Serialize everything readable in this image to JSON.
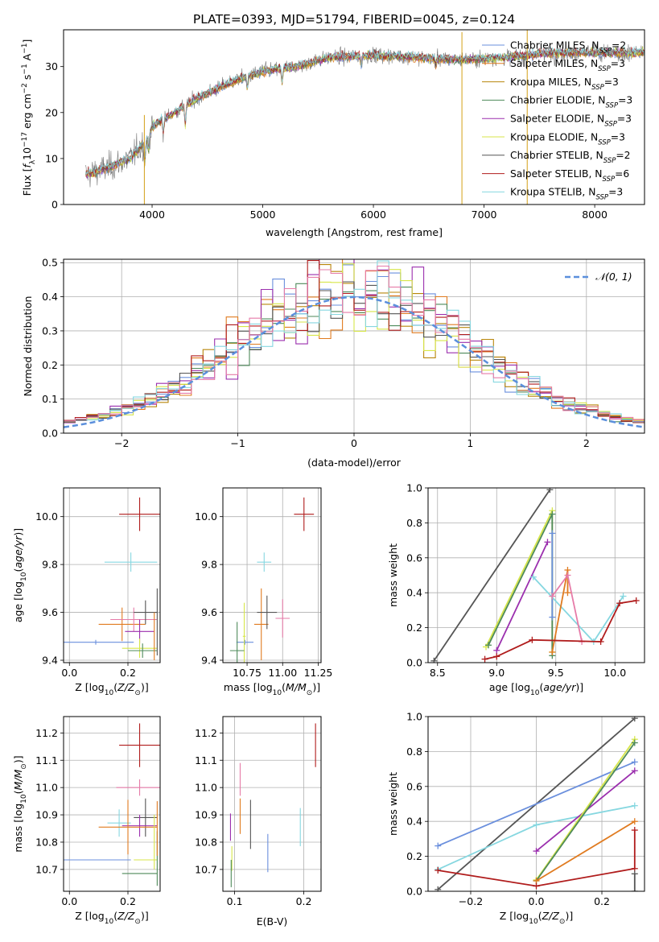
{
  "figure": {
    "title": "PLATE=0393, MJD=51794, FIBERID=0045, z=0.124"
  },
  "colors": {
    "Chabrier MILES": "#6a8fdd",
    "Salpeter MILES": "#e07b20",
    "Kroupa MILES": "#b8860b",
    "Chabrier ELODIE": "#4e8a5a",
    "Salpeter ELODIE": "#9b2fae",
    "Kroupa ELODIE": "#d7e64a",
    "Chabrier STELIB": "#555555",
    "Salpeter STELIB": "#b01c1c",
    "Kroupa STELIB": "#86d7e0",
    "pink": "#e67ba8"
  },
  "chart_data": [
    {
      "id": "spectrum",
      "type": "line",
      "xlabel": "wavelength [Angstrom, rest frame]",
      "ylabel": "Flux [f",
      "xlim": [
        3200,
        8450
      ],
      "ylim": [
        0,
        38
      ],
      "xticks": [
        4000,
        5000,
        6000,
        7000,
        8000
      ],
      "yticks": [
        0,
        10,
        20,
        30
      ],
      "legend_position": "top-right",
      "legend": [
        {
          "model": "Chabrier MILES",
          "nssp": "2"
        },
        {
          "model": "Salpeter MILES",
          "nssp": "3"
        },
        {
          "model": "Kroupa MILES",
          "nssp": "3"
        },
        {
          "model": "Chabrier ELODIE",
          "nssp": "3"
        },
        {
          "model": "Salpeter ELODIE",
          "nssp": "3"
        },
        {
          "model": "Kroupa ELODIE",
          "nssp": "3"
        },
        {
          "model": "Chabrier STELIB",
          "nssp": "2"
        },
        {
          "model": "Salpeter STELIB",
          "nssp": "6"
        },
        {
          "model": "Kroupa STELIB",
          "nssp": "3"
        }
      ],
      "continuum": [
        [
          3400,
          6.5
        ],
        [
          3600,
          8
        ],
        [
          3800,
          10
        ],
        [
          3950,
          14
        ],
        [
          4000,
          17
        ],
        [
          4200,
          20
        ],
        [
          4400,
          23
        ],
        [
          4700,
          26.5
        ],
        [
          5000,
          29
        ],
        [
          5300,
          30
        ],
        [
          5600,
          32
        ],
        [
          6000,
          32.5
        ],
        [
          6400,
          32
        ],
        [
          6800,
          31.5
        ],
        [
          7200,
          32
        ],
        [
          7600,
          33
        ],
        [
          8000,
          33
        ],
        [
          8400,
          33
        ]
      ],
      "absorption_lines": [
        [
          3934,
          4
        ],
        [
          3969,
          3.5
        ],
        [
          4102,
          3
        ],
        [
          4300,
          4
        ],
        [
          4861,
          2.5
        ],
        [
          5175,
          3
        ],
        [
          5890,
          2
        ],
        [
          6563,
          1.5
        ]
      ],
      "sky_spikes": [
        [
          6800,
          0
        ],
        [
          7390,
          0
        ],
        [
          3930,
          0.5
        ]
      ]
    },
    {
      "id": "residuals",
      "type": "histogram",
      "xlabel": "(data-model)/error",
      "ylabel": "Normed distribution",
      "xlim": [
        -2.5,
        2.5
      ],
      "ylim": [
        0,
        0.51
      ],
      "xticks": [
        -2,
        -1,
        0,
        1,
        2
      ],
      "yticks": [
        0.0,
        0.1,
        0.2,
        0.3,
        0.4,
        0.5
      ],
      "bins": 50,
      "reference_label": "𝒩(0, 1)",
      "legend_position": "top-right"
    },
    {
      "id": "age-vs-Z",
      "type": "scatter",
      "xlabel": "Z [log",
      "ylabel": "age  [log",
      "xlim": [
        -0.02,
        0.31
      ],
      "ylim": [
        9.39,
        10.12
      ],
      "xticks": [
        0.0,
        0.2
      ],
      "yticks": [
        9.4,
        9.6,
        9.8,
        10.0
      ],
      "points": [
        {
          "series": "Salpeter STELIB",
          "x": 0.24,
          "y": 10.01,
          "xerr": 0.07,
          "yerr": 0.07
        },
        {
          "series": "Kroupa STELIB",
          "x": 0.21,
          "y": 9.81,
          "xerr": 0.09,
          "yerr": 0.04
        },
        {
          "series": "Salpeter MILES",
          "x": 0.18,
          "y": 9.55,
          "xerr": 0.08,
          "yerr": 0.07
        },
        {
          "series": "pink",
          "x": 0.22,
          "y": 9.57,
          "xerr": 0.08,
          "yerr": 0.05
        },
        {
          "series": "Chabrier STELIB",
          "x": 0.26,
          "y": 9.6,
          "xerr": 0.04,
          "yerr": 0.05
        },
        {
          "series": "Chabrier MILES",
          "x": 0.09,
          "y": 9.475,
          "xerr": 0.13,
          "yerr": 0.01
        },
        {
          "series": "Salpeter ELODIE",
          "x": 0.24,
          "y": 9.52,
          "xerr": 0.05,
          "yerr": 0.05
        },
        {
          "series": "Kroupa ELODIE",
          "x": 0.24,
          "y": 9.45,
          "xerr": 0.06,
          "yerr": 0.04
        },
        {
          "series": "Chabrier ELODIE",
          "x": 0.25,
          "y": 9.44,
          "xerr": 0.05,
          "yerr": 0.03
        },
        {
          "series": "Salpeter MILES",
          "x": 0.29,
          "y": 9.5,
          "xerr": 0.0,
          "yerr": 0.1
        },
        {
          "series": "Chabrier STELIB",
          "x": 0.3,
          "y": 9.56,
          "xerr": 0.0,
          "yerr": 0.14
        }
      ]
    },
    {
      "id": "age-vs-mass",
      "type": "scatter",
      "xlabel": "mass [log",
      "ylabel": "",
      "xlim": [
        10.58,
        11.27
      ],
      "ylim": [
        9.39,
        10.12
      ],
      "xticks": [
        10.75,
        11.0,
        11.25
      ],
      "yticks": [
        9.4,
        9.6,
        9.8,
        10.0
      ],
      "points": [
        {
          "series": "Salpeter STELIB",
          "x": 11.15,
          "y": 10.01,
          "xerr": 0.07,
          "yerr": 0.07
        },
        {
          "series": "Kroupa STELIB",
          "x": 10.87,
          "y": 9.81,
          "xerr": 0.05,
          "yerr": 0.04
        },
        {
          "series": "Salpeter MILES",
          "x": 10.85,
          "y": 9.55,
          "xerr": 0.05,
          "yerr": 0.15
        },
        {
          "series": "pink",
          "x": 11.0,
          "y": 9.575,
          "xerr": 0.05,
          "yerr": 0.08
        },
        {
          "series": "Chabrier STELIB",
          "x": 10.89,
          "y": 9.6,
          "xerr": 0.07,
          "yerr": 0.07
        },
        {
          "series": "Chabrier MILES",
          "x": 10.735,
          "y": 9.475,
          "xerr": 0.06,
          "yerr": 0.01
        },
        {
          "series": "Kroupa ELODIE",
          "x": 10.73,
          "y": 9.5,
          "xerr": 0.01,
          "yerr": 0.14
        },
        {
          "series": "Chabrier ELODIE",
          "x": 10.68,
          "y": 9.44,
          "xerr": 0.05,
          "yerr": 0.12
        }
      ]
    },
    {
      "id": "mw-vs-age",
      "type": "line",
      "xlabel": "age  [log",
      "ylabel": "mass weight",
      "xlim": [
        8.42,
        10.25
      ],
      "ylim": [
        0,
        1
      ],
      "xticks": [
        8.5,
        9.0,
        9.5,
        10.0
      ],
      "yticks": [
        0.0,
        0.2,
        0.4,
        0.6,
        0.8,
        1.0
      ],
      "series": [
        {
          "name": "Chabrier STELIB",
          "points": [
            [
              8.47,
              0.01
            ],
            [
              9.45,
              0.99
            ]
          ]
        },
        {
          "name": "Kroupa ELODIE",
          "points": [
            [
              8.91,
              0.09
            ],
            [
              9.47,
              0.87
            ],
            [
              9.47,
              0.06
            ]
          ]
        },
        {
          "name": "Chabrier ELODIE",
          "points": [
            [
              8.93,
              0.1
            ],
            [
              9.47,
              0.85
            ],
            [
              9.47,
              0.04
            ]
          ]
        },
        {
          "name": "Salpeter ELODIE",
          "points": [
            [
              9.0,
              0.07
            ],
            [
              9.43,
              0.69
            ]
          ]
        },
        {
          "name": "Chabrier MILES",
          "points": [
            [
              9.47,
              0.74
            ],
            [
              9.47,
              0.26
            ]
          ]
        },
        {
          "name": "Kroupa STELIB",
          "points": [
            [
              9.31,
              0.49
            ],
            [
              9.82,
              0.12
            ],
            [
              10.07,
              0.38
            ]
          ]
        },
        {
          "name": "Salpeter MILES",
          "points": [
            [
              9.47,
              0.06
            ],
            [
              9.6,
              0.53
            ],
            [
              9.6,
              0.4
            ]
          ]
        },
        {
          "name": "pink",
          "points": [
            [
              9.47,
              0.38
            ],
            [
              9.6,
              0.5
            ],
            [
              9.72,
              0.12
            ]
          ]
        },
        {
          "name": "Salpeter STELIB",
          "points": [
            [
              8.9,
              0.02
            ],
            [
              9.0,
              0.035
            ],
            [
              9.3,
              0.13
            ],
            [
              9.88,
              0.12
            ],
            [
              10.04,
              0.34
            ],
            [
              10.18,
              0.355
            ]
          ]
        }
      ]
    },
    {
      "id": "mass-vs-Z",
      "type": "scatter",
      "xlabel": "Z [log",
      "ylabel": "mass [log",
      "xlim": [
        -0.02,
        0.31
      ],
      "ylim": [
        10.62,
        11.26
      ],
      "xticks": [
        0.0,
        0.2
      ],
      "yticks": [
        10.7,
        10.8,
        10.9,
        11.0,
        11.1,
        11.2
      ],
      "points": [
        {
          "series": "Salpeter STELIB",
          "x": 0.24,
          "y": 11.155,
          "xerr": 0.07,
          "yerr": 0.08
        },
        {
          "series": "pink",
          "x": 0.24,
          "y": 11.0,
          "xerr": 0.08,
          "yerr": 0.03
        },
        {
          "series": "Kroupa STELIB",
          "x": 0.17,
          "y": 10.87,
          "xerr": 0.04,
          "yerr": 0.05
        },
        {
          "series": "Chabrier STELIB",
          "x": 0.26,
          "y": 10.89,
          "xerr": 0.04,
          "yerr": 0.07
        },
        {
          "series": "Salpeter ELODIE",
          "x": 0.24,
          "y": 10.86,
          "xerr": 0.06,
          "yerr": 0.04
        },
        {
          "series": "Salpeter MILES",
          "x": 0.2,
          "y": 10.855,
          "xerr": 0.1,
          "yerr": 0.1
        },
        {
          "series": "Chabrier MILES",
          "x": 0.09,
          "y": 10.735,
          "xerr": 0.12,
          "yerr": 0.0
        },
        {
          "series": "Kroupa ELODIE",
          "x": 0.26,
          "y": 10.735,
          "xerr": 0.04,
          "yerr": 0.0
        },
        {
          "series": "Chabrier ELODIE",
          "x": 0.24,
          "y": 10.685,
          "xerr": 0.06,
          "yerr": 0.0
        },
        {
          "series": "Chabrier ELODIE",
          "x": 0.3,
          "y": 10.74,
          "xerr": 0.0,
          "yerr": 0.1
        },
        {
          "series": "Kroupa ELODIE",
          "x": 0.29,
          "y": 10.8,
          "xerr": 0.0,
          "yerr": 0.1
        },
        {
          "series": "Salpeter MILES",
          "x": 0.3,
          "y": 10.85,
          "xerr": 0.0,
          "yerr": 0.1
        }
      ]
    },
    {
      "id": "mass-vs-EBV",
      "type": "scatter",
      "xlabel": "E(B-V)",
      "ylabel": "",
      "xlim": [
        0.083,
        0.225
      ],
      "ylim": [
        10.62,
        11.26
      ],
      "xticks": [
        0.1,
        0.2
      ],
      "yticks": [
        10.7,
        10.8,
        10.9,
        11.0,
        11.1,
        11.2
      ],
      "points": [
        {
          "series": "Salpeter STELIB",
          "x": 0.217,
          "y": 11.155,
          "xerr": 0,
          "yerr": 0.08
        },
        {
          "series": "pink",
          "x": 0.108,
          "y": 11.03,
          "xerr": 0,
          "yerr": 0.06
        },
        {
          "series": "Salpeter MILES",
          "x": 0.108,
          "y": 10.895,
          "xerr": 0,
          "yerr": 0.065
        },
        {
          "series": "Chabrier STELIB",
          "x": 0.123,
          "y": 10.865,
          "xerr": 0,
          "yerr": 0.09
        },
        {
          "series": "Kroupa STELIB",
          "x": 0.195,
          "y": 10.855,
          "xerr": 0,
          "yerr": 0.07
        },
        {
          "series": "Salpeter ELODIE",
          "x": 0.094,
          "y": 10.855,
          "xerr": 0,
          "yerr": 0.05
        },
        {
          "series": "Chabrier MILES",
          "x": 0.148,
          "y": 10.76,
          "xerr": 0,
          "yerr": 0.07
        },
        {
          "series": "Kroupa ELODIE",
          "x": 0.096,
          "y": 10.74,
          "xerr": 0,
          "yerr": 0.045
        },
        {
          "series": "Chabrier ELODIE",
          "x": 0.095,
          "y": 10.685,
          "xerr": 0,
          "yerr": 0.05
        }
      ]
    },
    {
      "id": "mw-vs-Z",
      "type": "line",
      "xlabel": "Z [log",
      "ylabel": "mass weight",
      "xlim": [
        -0.33,
        0.33
      ],
      "ylim": [
        0,
        1
      ],
      "xticks": [
        -0.2,
        0.0,
        0.2
      ],
      "yticks": [
        0.0,
        0.2,
        0.4,
        0.6,
        0.8,
        1.0
      ],
      "series": [
        {
          "name": "Chabrier STELIB",
          "points": [
            [
              -0.3,
              0.01
            ],
            [
              0.3,
              0.99
            ]
          ]
        },
        {
          "name": "Chabrier MILES",
          "points": [
            [
              -0.3,
              0.26
            ],
            [
              0.3,
              0.74
            ]
          ]
        },
        {
          "name": "Kroupa STELIB",
          "points": [
            [
              -0.3,
              0.125
            ],
            [
              0.0,
              0.38
            ],
            [
              0.3,
              0.49
            ]
          ]
        },
        {
          "name": "Salpeter ELODIE",
          "points": [
            [
              0.0,
              0.23
            ],
            [
              0.3,
              0.69
            ]
          ]
        },
        {
          "name": "Kroupa ELODIE",
          "points": [
            [
              0.0,
              0.065
            ],
            [
              0.3,
              0.87
            ]
          ]
        },
        {
          "name": "Chabrier ELODIE",
          "points": [
            [
              0.0,
              0.06
            ],
            [
              0.3,
              0.85
            ]
          ]
        },
        {
          "name": "Salpeter MILES",
          "points": [
            [
              0.0,
              0.06
            ],
            [
              0.3,
              0.4
            ]
          ]
        },
        {
          "name": "Salpeter STELIB",
          "points": [
            [
              -0.3,
              0.12
            ],
            [
              0.0,
              0.03
            ],
            [
              0.3,
              0.13
            ],
            [
              0.3,
              0.35
            ]
          ]
        },
        {
          "name": "Chabrier STELIB",
          "points": [
            [
              0.3,
              0.0
            ],
            [
              0.3,
              0.1
            ]
          ]
        }
      ]
    }
  ]
}
